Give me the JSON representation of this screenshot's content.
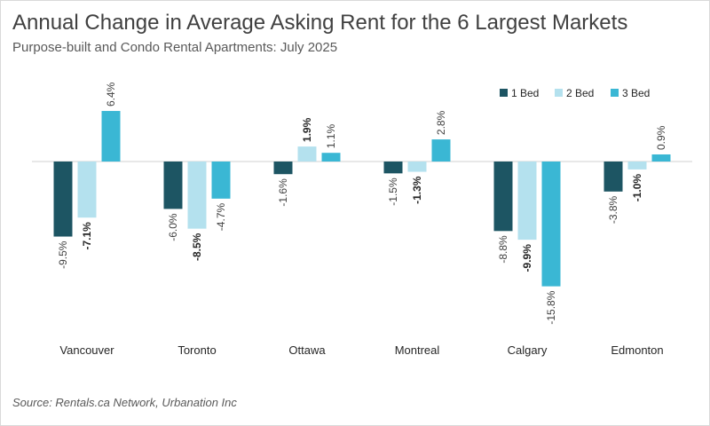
{
  "chart_data": {
    "type": "bar",
    "title": "Annual Change in Average Asking Rent for the 6 Largest Markets",
    "subtitle": "Purpose-built and Condo Rental Apartments: July 2025",
    "source": "Source: Rentals.ca Network, Urbanation Inc",
    "categories": [
      "Vancouver",
      "Toronto",
      "Ottawa",
      "Montreal",
      "Calgary",
      "Edmonton"
    ],
    "series": [
      {
        "name": "1 Bed",
        "color": "#1d5563",
        "values": [
          -9.5,
          -6.0,
          -1.6,
          -1.5,
          -8.8,
          -3.8
        ],
        "labels": [
          "-9.5%",
          "-6.0%",
          "-1.6%",
          "-1.5%",
          "-8.8%",
          "-3.8%"
        ]
      },
      {
        "name": "2 Bed",
        "color": "#b4e1ee",
        "values": [
          -7.1,
          -8.5,
          1.9,
          -1.3,
          -9.9,
          -1.0
        ],
        "labels": [
          "-7.1%",
          "-8.5%",
          "1.9%",
          "-1.3%",
          "-9.9%",
          "-1.0%"
        ]
      },
      {
        "name": "3 Bed",
        "color": "#3ab7d4",
        "values": [
          6.4,
          -4.7,
          1.1,
          2.8,
          -15.8,
          0.9
        ],
        "labels": [
          "6.4%",
          "-4.7%",
          "1.1%",
          "2.8%",
          "-15.8%",
          "0.9%"
        ]
      }
    ],
    "ylim": [
      -16,
      7
    ],
    "ylabel": "",
    "xlabel": "",
    "legend_position": "top-right",
    "grid": false
  }
}
